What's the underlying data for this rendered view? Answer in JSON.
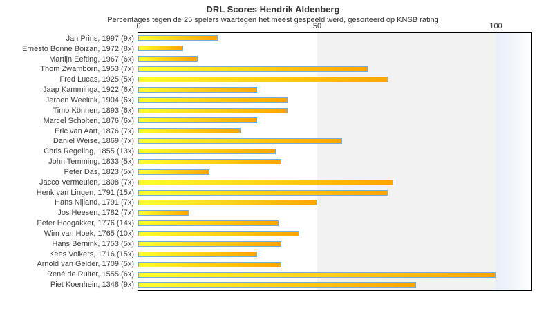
{
  "chart_data": {
    "type": "bar",
    "orientation": "horizontal",
    "title": "DRL Scores Hendrik Aldenberg",
    "subtitle": "Percentages tegen de 25 spelers waartegen het meest gespeeld werd, gesorteerd op KNSB rating",
    "categories": [
      "Jan Prins, 1997 (9x)",
      "Ernesto Bonne Boizan, 1972 (8x)",
      "Martijn Eefting, 1967 (6x)",
      "Thom Zwamborn, 1953 (7x)",
      "Fred Lucas, 1925 (5x)",
      "Jaap Kamminga, 1922 (6x)",
      "Jeroen Weelink, 1904 (6x)",
      "Timo Können, 1893 (6x)",
      "Marcel Scholten, 1876 (6x)",
      "Eric van Aart, 1876 (7x)",
      "Daniel Weise, 1869 (7x)",
      "Chris Regeling, 1855 (13x)",
      "John Temming, 1833 (5x)",
      "Peter Das, 1823 (5x)",
      "Jacco Vermeulen, 1808 (7x)",
      "Henk van Lingen, 1791 (15x)",
      "Hans Nijland, 1791 (7x)",
      "Jos Heesen, 1782 (7x)",
      "Peter Hoogakker, 1776 (14x)",
      "Wim van Hoek, 1765 (10x)",
      "Hans Bernink, 1753 (5x)",
      "Kees Volkers, 1716 (15x)",
      "Arnold van Gelder, 1709 (5x)",
      "René de Ruiter, 1555 (6x)",
      "Piet Koenhein, 1348 (9x)"
    ],
    "values": [
      22.2,
      12.5,
      16.7,
      64.3,
      70,
      33.3,
      41.7,
      41.7,
      33.3,
      28.6,
      57.1,
      38.5,
      40,
      20,
      71.4,
      70,
      50,
      14.3,
      39.3,
      45,
      40,
      33.3,
      40,
      100,
      77.8
    ],
    "xlabel": "",
    "ylabel": "",
    "x_ticks": [
      0,
      50,
      100
    ],
    "xlim": [
      0,
      110
    ],
    "grid": "vertical-band-50-100",
    "legend_position": "none",
    "colors": {
      "bar_gradient_start": "#ffff2e",
      "bar_gradient_end": "#ffa400",
      "bar_border": "#79abd8",
      "band_gray": "#f2f2f2",
      "band_highlight": "#e7eff8",
      "plot_border": "#000000",
      "text": "#3d3d3d"
    }
  }
}
